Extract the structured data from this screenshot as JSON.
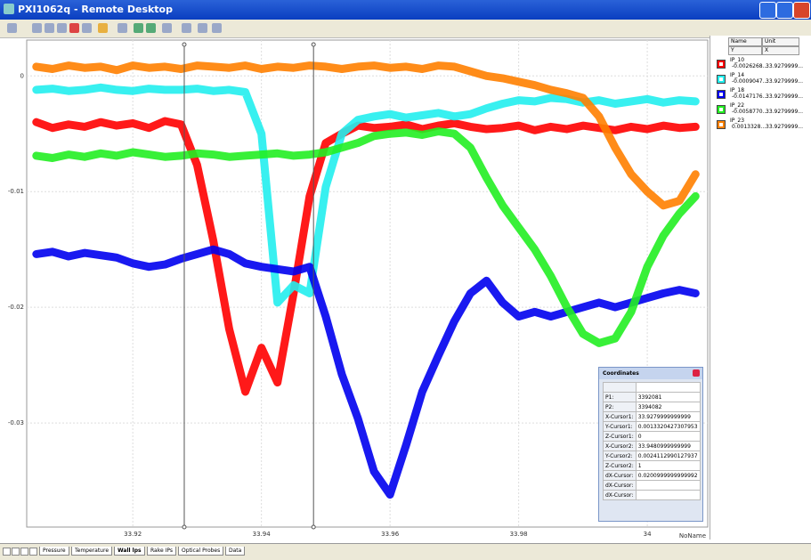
{
  "window": {
    "title": "PXI1062q - Remote Desktop"
  },
  "chart_data": {
    "type": "line",
    "x": [
      33.905,
      33.9075,
      33.91,
      33.9125,
      33.915,
      33.9175,
      33.92,
      33.9225,
      33.925,
      33.9275,
      33.93,
      33.9325,
      33.935,
      33.9375,
      33.94,
      33.9425,
      33.945,
      33.9475,
      33.95,
      33.9525,
      33.955,
      33.9575,
      33.96,
      33.9625,
      33.965,
      33.9675,
      33.97,
      33.9725,
      33.975,
      33.9775,
      33.98,
      33.9825,
      33.985,
      33.9875,
      33.99,
      33.9925,
      33.995,
      33.9975,
      34,
      34.0025,
      34.005,
      34.0075
    ],
    "xlim": [
      33.9035,
      34.0094
    ],
    "ylim": [
      -0.039,
      0.0031
    ],
    "xticks": [
      33.92,
      33.94,
      33.96,
      33.98,
      34
    ],
    "yticks": [
      0,
      -0.01,
      -0.02,
      -0.03
    ],
    "xlabel": "NoName",
    "grid": true,
    "cursors": [
      33.928,
      33.9481
    ],
    "series": [
      {
        "name": "IP_10",
        "color": "#ff0000",
        "values": [
          -0.004,
          -0.0045,
          -0.0042,
          -0.0044,
          -0.004,
          -0.0043,
          -0.0041,
          -0.0045,
          -0.0039,
          -0.0042,
          -0.0077,
          -0.0142,
          -0.0219,
          -0.0273,
          -0.0235,
          -0.0265,
          -0.0188,
          -0.0104,
          -0.0058,
          -0.005,
          -0.0043,
          -0.0045,
          -0.0044,
          -0.0042,
          -0.0046,
          -0.0043,
          -0.0041,
          -0.0044,
          -0.0046,
          -0.0045,
          -0.0043,
          -0.0047,
          -0.0044,
          -0.0046,
          -0.0043,
          -0.0045,
          -0.0047,
          -0.0044,
          -0.0046,
          -0.0043,
          -0.0045,
          -0.0044
        ]
      },
      {
        "name": "IP_14",
        "color": "#22eeee",
        "values": [
          -0.0012,
          -0.0011,
          -0.0013,
          -0.0012,
          -0.001,
          -0.0012,
          -0.0013,
          -0.0011,
          -0.0012,
          -0.0012,
          -0.0011,
          -0.0013,
          -0.0012,
          -0.0014,
          -0.005,
          -0.0196,
          -0.0181,
          -0.0188,
          -0.0096,
          -0.005,
          -0.0038,
          -0.0035,
          -0.0033,
          -0.0036,
          -0.0034,
          -0.0032,
          -0.0035,
          -0.0033,
          -0.0028,
          -0.0024,
          -0.0021,
          -0.0022,
          -0.0019,
          -0.002,
          -0.0023,
          -0.0021,
          -0.0024,
          -0.0022,
          -0.002,
          -0.0023,
          -0.0021,
          -0.0022
        ]
      },
      {
        "name": "IP_18",
        "color": "#0000ee",
        "values": [
          -0.0154,
          -0.0152,
          -0.0156,
          -0.0153,
          -0.0155,
          -0.0157,
          -0.0162,
          -0.0165,
          -0.0163,
          -0.0158,
          -0.0154,
          -0.015,
          -0.0154,
          -0.0162,
          -0.0165,
          -0.0167,
          -0.0169,
          -0.0165,
          -0.0208,
          -0.0258,
          -0.0296,
          -0.0342,
          -0.0362,
          -0.0319,
          -0.0273,
          -0.0242,
          -0.0212,
          -0.0188,
          -0.0177,
          -0.0196,
          -0.0208,
          -0.0204,
          -0.0208,
          -0.0204,
          -0.02,
          -0.0196,
          -0.02,
          -0.0196,
          -0.0192,
          -0.0188,
          -0.0185,
          -0.0188
        ]
      },
      {
        "name": "IP_22",
        "color": "#22ee22",
        "values": [
          -0.0069,
          -0.0071,
          -0.0068,
          -0.007,
          -0.0067,
          -0.0069,
          -0.0066,
          -0.0068,
          -0.007,
          -0.0069,
          -0.0067,
          -0.0068,
          -0.007,
          -0.0069,
          -0.0068,
          -0.0067,
          -0.0069,
          -0.0068,
          -0.0066,
          -0.0062,
          -0.0058,
          -0.0052,
          -0.005,
          -0.0049,
          -0.0051,
          -0.0048,
          -0.005,
          -0.0062,
          -0.0088,
          -0.0112,
          -0.0131,
          -0.015,
          -0.0173,
          -0.02,
          -0.0223,
          -0.0231,
          -0.0227,
          -0.0204,
          -0.0165,
          -0.0138,
          -0.0119,
          -0.0104
        ]
      },
      {
        "name": "IP_23",
        "color": "#ff8000",
        "values": [
          0.0008,
          0.0006,
          0.0009,
          0.0007,
          0.0008,
          0.0005,
          0.0009,
          0.0007,
          0.0008,
          0.0006,
          0.0009,
          0.0008,
          0.0007,
          0.0009,
          0.0006,
          0.0008,
          0.0007,
          0.0009,
          0.0008,
          0.0006,
          0.0008,
          0.0009,
          0.0007,
          0.0008,
          0.0006,
          0.0009,
          0.0008,
          0.0004,
          0,
          -0.0002,
          -0.0005,
          -0.0008,
          -0.0012,
          -0.0015,
          -0.0019,
          -0.0035,
          -0.0062,
          -0.0085,
          -0.01,
          -0.0112,
          -0.0108,
          -0.0085
        ]
      }
    ]
  },
  "legend_table": {
    "headers": [
      "Name",
      "Unit"
    ],
    "subheaders": [
      "Y",
      "X"
    ],
    "rows": [
      {
        "y": "-0.0026268...",
        "x": "33.9279999..."
      },
      {
        "y": "-0.0009047...",
        "x": "33.9279999..."
      },
      {
        "y": "-0.0147176...",
        "x": "33.9279999..."
      },
      {
        "y": "-0.0058770...",
        "x": "33.9279999..."
      },
      {
        "y": "0.0013328...",
        "x": "33.9279999..."
      }
    ]
  },
  "coordinates": {
    "title": "Coordinates",
    "rows": [
      [
        "P1:",
        "3392081"
      ],
      [
        "P2:",
        "3394082"
      ],
      [
        "X-Cursor1:",
        "33.9279999999999"
      ],
      [
        "Y-Cursor1:",
        "0.0013320427307953"
      ],
      [
        "Z-Cursor1:",
        "0"
      ],
      [
        "X-Cursor2:",
        "33.9480999999999"
      ],
      [
        "Y-Cursor2:",
        "0.0024112990127937"
      ],
      [
        "Z-Cursor2:",
        "1"
      ],
      [
        "dX-Cursor:",
        "0.0200999999999992"
      ],
      [
        "dX-Cursor:"
      ],
      [
        "dX-Cursor:"
      ]
    ]
  },
  "tabs": [
    "Pressure",
    "Temperature",
    "Wall lps",
    "Rake IPs",
    "Optical Probes",
    "Data"
  ]
}
